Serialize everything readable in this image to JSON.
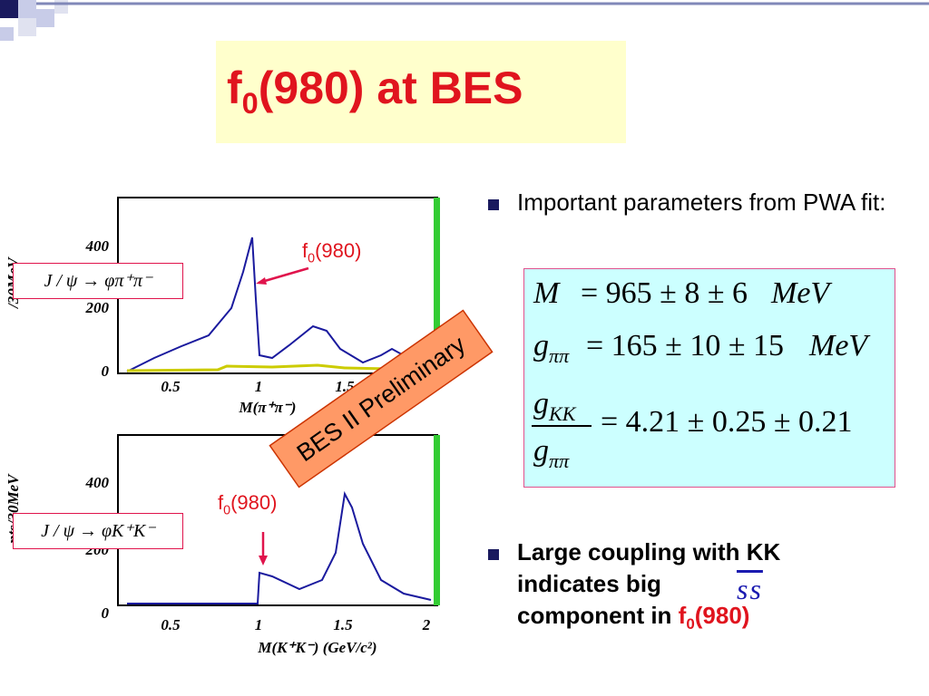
{
  "title": {
    "base": "f",
    "sub": "0",
    "rest": "(980) at BES"
  },
  "plots": [
    {
      "y_label": "/30MeV",
      "y_ticks": [
        "400",
        "200",
        "0"
      ],
      "x_ticks": [
        "0.5",
        "1",
        "1.5"
      ],
      "x_label": "M(π⁺π⁻)",
      "decay": "J / ψ → φπ⁺π⁻",
      "annotation": {
        "base": "f",
        "sub": "0",
        "rest": "(980)"
      }
    },
    {
      "y_label": "nts/30MeV",
      "y_ticks": [
        "400",
        "200",
        "0"
      ],
      "x_ticks": [
        "0.5",
        "1",
        "1.5",
        "2"
      ],
      "x_label": "M(K⁺K⁻)  (GeV/c²)",
      "decay": "J / ψ → φK⁺K⁻",
      "annotation": {
        "base": "f",
        "sub": "0",
        "rest": "(980)"
      }
    }
  ],
  "stamp": "BES II Preliminary",
  "bullets": [
    {
      "text": "Important parameters from PWA fit:"
    },
    {
      "text": "Large coupling with KK indicates big",
      "formula": "ss",
      "tail": "component in",
      "highlight": {
        "base": "f",
        "sub": "0",
        "rest": "(980)"
      }
    }
  ],
  "formula_box": {
    "lines": [
      {
        "lhs": "M",
        "rhs": "= 965 ± 8 ± 6",
        "unit": "MeV"
      },
      {
        "lhs": "g",
        "lhs_sub": "ππ",
        "rhs": "= 165 ± 10 ± 15",
        "unit": "MeV"
      }
    ],
    "ratio": {
      "num": "g",
      "num_sub": "KK",
      "den": "g",
      "den_sub": "ππ",
      "rhs": "= 4.21 ± 0.25 ± 0.21"
    }
  }
}
